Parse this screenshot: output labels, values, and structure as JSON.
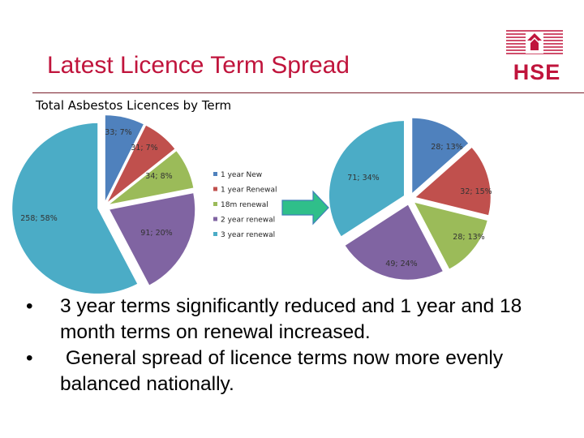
{
  "slide": {
    "title": "Latest Licence Term Spread",
    "logo_text": "HSE"
  },
  "bullets": [
    {
      "marker": "•",
      "text": "3 year terms significantly reduced and 1 year and 18 month terms on renewal increased."
    },
    {
      "marker": "•",
      "text": " General spread of licence terms now more evenly balanced nationally."
    }
  ],
  "colors": {
    "title": "#c0143c",
    "one_year_new": "#4f81bd",
    "one_year_renewal": "#c0504d",
    "eighteen_month_renewal": "#9bbb59",
    "two_year_renewal": "#8064a2",
    "three_year_renewal": "#4bacc6",
    "arrow": "#2fbf8a"
  },
  "chart_data": {
    "title": "Total Asbestos Licences by Term",
    "type": "pie",
    "legend": [
      {
        "label": "1 year New"
      },
      {
        "label": "1 year Renewal"
      },
      {
        "label": "18m renewal"
      },
      {
        "label": "2 year renewal"
      },
      {
        "label": "3 year renewal"
      }
    ],
    "charts": [
      {
        "name": "before",
        "slices": [
          {
            "category": "1 year New",
            "value": 33,
            "percent": 7,
            "label": "33; 7%"
          },
          {
            "category": "1 year Renewal",
            "value": 31,
            "percent": 7,
            "label": "31; 7%"
          },
          {
            "category": "18m renewal",
            "value": 34,
            "percent": 8,
            "label": "34; 8%"
          },
          {
            "category": "2 year renewal",
            "value": 91,
            "percent": 20,
            "label": "91; 20%"
          },
          {
            "category": "3 year renewal",
            "value": 258,
            "percent": 58,
            "label": "258; 58%"
          }
        ]
      },
      {
        "name": "after",
        "slices": [
          {
            "category": "1 year New",
            "value": 28,
            "percent": 13,
            "label": "28; 13%"
          },
          {
            "category": "1 year Renewal",
            "value": 32,
            "percent": 15,
            "label": "32; 15%"
          },
          {
            "category": "18m renewal",
            "value": 28,
            "percent": 13,
            "label": "28; 13%"
          },
          {
            "category": "2 year renewal",
            "value": 49,
            "percent": 24,
            "label": "49; 24%"
          },
          {
            "category": "3 year renewal",
            "value": 71,
            "percent": 34,
            "label": "71; 34%"
          }
        ]
      }
    ]
  }
}
